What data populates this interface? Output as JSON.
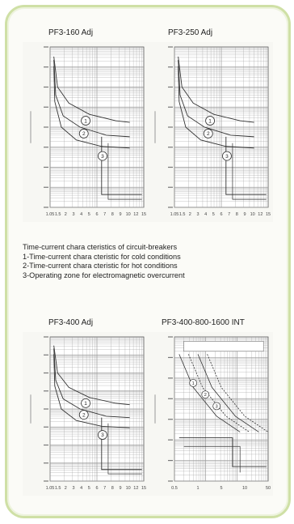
{
  "description": {
    "heading": "Time-current chara  cteristics of circuit-breakers",
    "lines": [
      "1-Time-current chara cteristic for cold conditions",
      "2-Time-current chara  cteristic for hot conditions",
      "3-Operating zone for electromagnetic overcurrent"
    ]
  },
  "chart_data": [
    {
      "type": "line",
      "title": "PF3-160 Adj",
      "scale": "log-log",
      "grid": true,
      "x_tick_labels": [
        "1.05",
        "1.5",
        "2",
        "3",
        "4",
        "5",
        "6",
        "7",
        "8",
        "9",
        "10",
        "12",
        "15"
      ],
      "curve_markers": [
        "1",
        "2",
        "3"
      ]
    },
    {
      "type": "line",
      "title": "PF3-250 Adj",
      "scale": "log-log",
      "grid": true,
      "x_tick_labels": [
        "1.05",
        "1.5",
        "2",
        "3",
        "4",
        "5",
        "6",
        "7",
        "8",
        "9",
        "10",
        "12",
        "15"
      ],
      "curve_markers": [
        "1",
        "2",
        "3"
      ]
    },
    {
      "type": "line",
      "title": "PF3-400 Adj",
      "scale": "log-log",
      "grid": true,
      "x_tick_labels": [
        "1.05",
        "1.5",
        "2",
        "3",
        "4",
        "5",
        "6",
        "7",
        "8",
        "9",
        "10",
        "12",
        "15"
      ],
      "curve_markers": [
        "1",
        "2",
        "3"
      ]
    },
    {
      "type": "line",
      "title": "PF3-400-800-1600 INT",
      "scale": "log-log",
      "grid": true,
      "x_tick_labels": [
        "0.5",
        "1",
        "5",
        "10",
        "50"
      ],
      "curve_markers": [
        "1",
        "2",
        "3"
      ]
    }
  ],
  "colors": {
    "border": "#cfe0a6",
    "grid": "#9a9a9a",
    "curve": "#333333"
  }
}
